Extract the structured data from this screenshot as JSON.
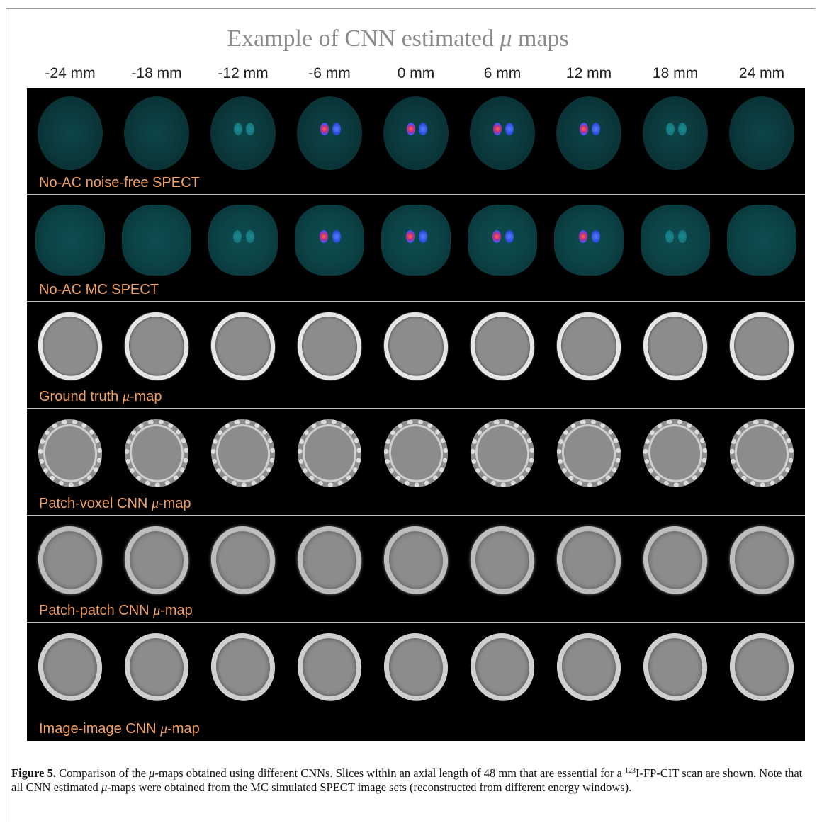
{
  "figure": {
    "title_prefix": "Example of CNN estimated ",
    "title_mu": "μ",
    "title_suffix": " maps",
    "slice_labels": [
      "-24 mm",
      "-18 mm",
      "-12 mm",
      "-6 mm",
      "0 mm",
      "6 mm",
      "12 mm",
      "18 mm",
      "24 mm"
    ],
    "rows": [
      {
        "label": "No-AC noise-free SPECT",
        "label_mu": "",
        "label_suffix": "",
        "kind": "spect"
      },
      {
        "label": "No-AC MC SPECT",
        "label_mu": "",
        "label_suffix": "",
        "kind": "spect-mc"
      },
      {
        "label": "Ground truth ",
        "label_mu": "μ",
        "label_suffix": "-map",
        "kind": "mu-gt"
      },
      {
        "label": "Patch-voxel CNN ",
        "label_mu": "μ",
        "label_suffix": "-map",
        "kind": "mu-pv"
      },
      {
        "label": "Patch-patch CNN ",
        "label_mu": "μ",
        "label_suffix": "-map",
        "kind": "mu-pp"
      },
      {
        "label": "Image-image CNN ",
        "label_mu": "μ",
        "label_suffix": "-map",
        "kind": "mu-ii"
      }
    ],
    "colors": {
      "label": "#f0a060",
      "background": "#000000",
      "spect": "#0d4548"
    }
  },
  "caption": {
    "label": "Figure 5.",
    "text_1": " Comparison of the ",
    "mu_1": "μ",
    "text_2": "-maps obtained using different CNNs. Slices within an axial length of 48 mm that are essential for a ",
    "sup": "123",
    "text_3": "I-FP-CIT scan are shown. Note that all CNN estimated ",
    "mu_2": "μ",
    "text_4": "-maps were obtained from the MC simulated SPECT image sets (reconstructed from different energy windows)."
  }
}
